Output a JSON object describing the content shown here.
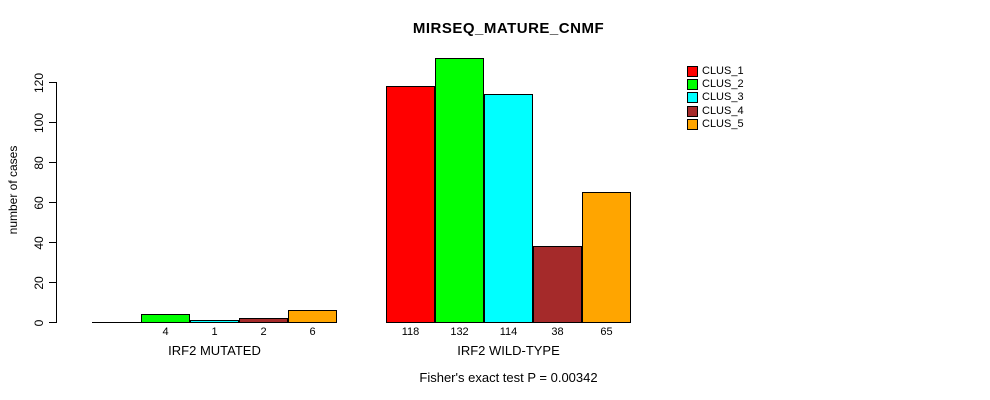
{
  "title": "MIRSEQ_MATURE_CNMF",
  "chart_data": {
    "type": "bar",
    "title": "MIRSEQ_MATURE_CNMF",
    "ylabel": "number of cases",
    "xlabel": "",
    "categories": [
      "IRF2 MUTATED",
      "IRF2 WILD-TYPE"
    ],
    "series": [
      {
        "name": "CLUS_1",
        "color": "#FF0000",
        "values": [
          0,
          118
        ]
      },
      {
        "name": "CLUS_2",
        "color": "#00FF00",
        "values": [
          4,
          132
        ]
      },
      {
        "name": "CLUS_3",
        "color": "#00FFFF",
        "values": [
          1,
          114
        ]
      },
      {
        "name": "CLUS_4",
        "color": "#A52A2A",
        "values": [
          2,
          38
        ]
      },
      {
        "name": "CLUS_5",
        "color": "#FFA500",
        "values": [
          6,
          65
        ]
      }
    ],
    "value_labels": [
      [
        "",
        "4",
        "1",
        "2",
        "6"
      ],
      [
        "118",
        "132",
        "114",
        "38",
        "65"
      ]
    ],
    "yticks": [
      0,
      20,
      40,
      60,
      80,
      100,
      120
    ],
    "ylim": [
      0,
      135
    ],
    "grid": false,
    "legend_position": "top-right",
    "legend_entries": [
      "CLUS_1",
      "CLUS_2",
      "CLUS_3",
      "CLUS_4",
      "CLUS_5"
    ],
    "annotation": "Fisher's exact test P = 0.00342"
  },
  "colors": {
    "background": "#FFFFFF",
    "axis": "#000000",
    "text": "#000000"
  }
}
